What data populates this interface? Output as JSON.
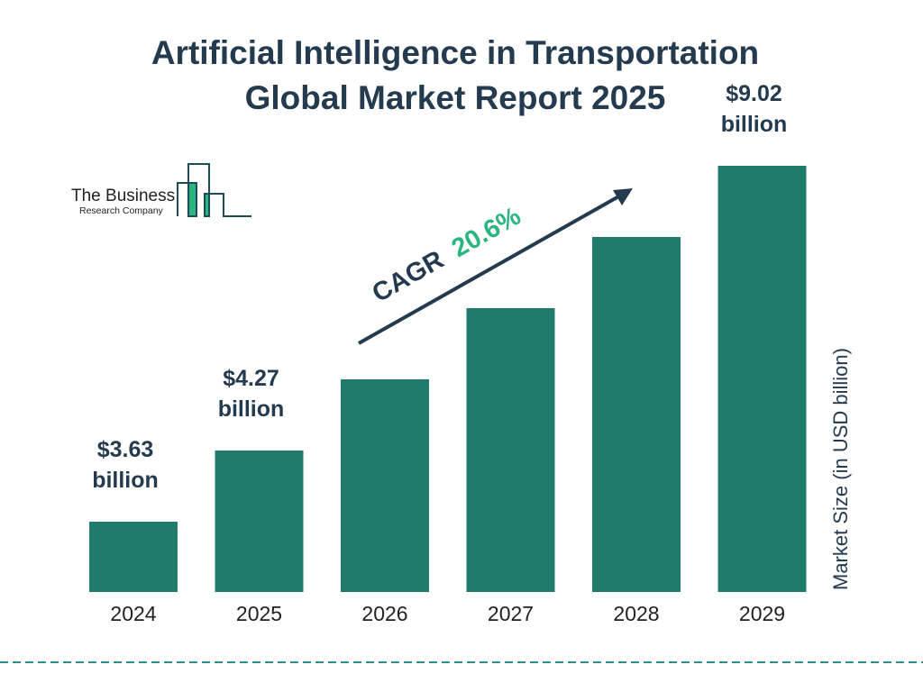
{
  "title_line1": "Artificial Intelligence in Transportation",
  "title_line2": "Global Market Report 2025",
  "logo": {
    "line1": "The Business",
    "line2": "Research Company"
  },
  "cagr": {
    "label": "CAGR",
    "value": "20.6%"
  },
  "colors": {
    "bar": "#217b6c",
    "title": "#233a4f",
    "cagr": "#2bb57f",
    "divider": "#2a8c8c"
  },
  "chart_data": {
    "type": "bar",
    "categories": [
      "2024",
      "2025",
      "2026",
      "2027",
      "2028",
      "2029"
    ],
    "values": [
      3.63,
      4.27,
      5.15,
      6.21,
      7.49,
      9.02
    ],
    "data_labels": [
      {
        "index": 0,
        "line1": "$3.63",
        "line2": "billion"
      },
      {
        "index": 1,
        "line1": "$4.27",
        "line2": "billion"
      },
      {
        "index": 5,
        "line1": "$9.02",
        "line2": "billion"
      }
    ],
    "title": "Artificial Intelligence in Transportation Global Market Report 2025",
    "xlabel": "",
    "ylabel": "Market Size (in USD billion)",
    "grid": false,
    "legend": "none"
  }
}
